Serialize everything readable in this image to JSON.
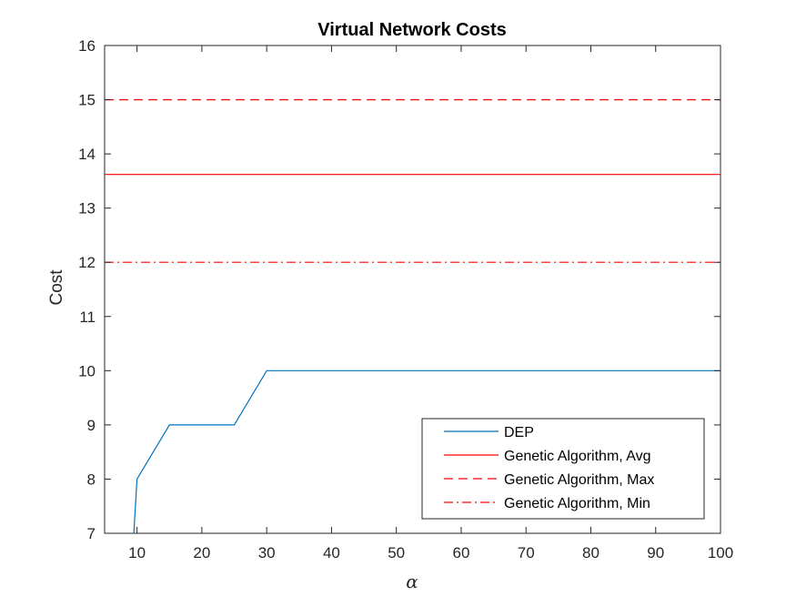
{
  "chart_data": {
    "type": "line",
    "title": "Virtual Network Costs",
    "xlabel": "α",
    "ylabel": "Cost",
    "xlim": [
      5,
      100
    ],
    "ylim": [
      7,
      16
    ],
    "xticks": [
      10,
      20,
      30,
      40,
      50,
      60,
      70,
      80,
      90,
      100
    ],
    "yticks": [
      7,
      8,
      9,
      10,
      11,
      12,
      13,
      14,
      15,
      16
    ],
    "grid": false,
    "legend_position": "bottom-right",
    "series": [
      {
        "name": "DEP",
        "color": "#0072BD",
        "style": "solid",
        "x": [
          9.5,
          10,
          15,
          20,
          25,
          30,
          35,
          40,
          45,
          50,
          55,
          60,
          65,
          70,
          75,
          80,
          85,
          90,
          95,
          100
        ],
        "y": [
          7,
          8,
          9,
          9,
          9,
          10,
          10,
          10,
          10,
          10,
          10,
          10,
          10,
          10,
          10,
          10,
          10,
          10,
          10,
          10
        ]
      },
      {
        "name": "Genetic Algorithm, Avg",
        "color": "#FF0000",
        "style": "solid",
        "x": [
          5,
          100
        ],
        "y": [
          13.62,
          13.62
        ]
      },
      {
        "name": "Genetic Algorithm, Max",
        "color": "#FF0000",
        "style": "dashed",
        "x": [
          5,
          100
        ],
        "y": [
          15,
          15
        ]
      },
      {
        "name": "Genetic Algorithm, Min",
        "color": "#FF0000",
        "style": "dashdot",
        "x": [
          5,
          100
        ],
        "y": [
          12,
          12
        ]
      }
    ]
  }
}
